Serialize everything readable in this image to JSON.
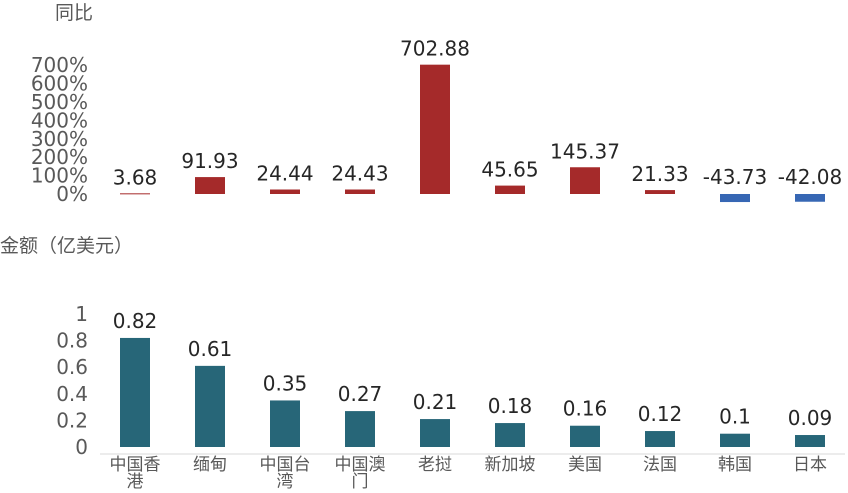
{
  "chart_data": [
    {
      "type": "bar",
      "ylabel": "同比",
      "categories": [
        "中国香港",
        "缅甸",
        "中国台湾",
        "中国澳门",
        "老挝",
        "新加坡",
        "美国",
        "法国",
        "韩国",
        "日本"
      ],
      "values": [
        3.68,
        91.93,
        24.44,
        24.43,
        702.88,
        45.65,
        145.37,
        21.33,
        -43.73,
        -42.08
      ],
      "yticks": [
        "0%",
        "100%",
        "200%",
        "300%",
        "400%",
        "500%",
        "600%",
        "700%"
      ],
      "ylim": [
        -50,
        730
      ],
      "colors": {
        "positive": "#A52A2A",
        "negative": "#3767B4"
      }
    },
    {
      "type": "bar",
      "ylabel": "金额（亿美元）",
      "categories": [
        "中国香港",
        "缅甸",
        "中国台湾",
        "中国澳门",
        "老挝",
        "新加坡",
        "美国",
        "法国",
        "韩国",
        "日本"
      ],
      "category_lines": [
        [
          "中国香",
          "港"
        ],
        [
          "缅甸"
        ],
        [
          "中国台",
          "湾"
        ],
        [
          "中国澳",
          "门"
        ],
        [
          "老挝"
        ],
        [
          "新加坡"
        ],
        [
          "美国"
        ],
        [
          "法国"
        ],
        [
          "韩国"
        ],
        [
          "日本"
        ]
      ],
      "values": [
        0.82,
        0.61,
        0.35,
        0.27,
        0.21,
        0.18,
        0.16,
        0.12,
        0.1,
        0.09
      ],
      "yticks": [
        "0",
        "0.2",
        "0.4",
        "0.6",
        "0.8",
        "1"
      ],
      "ylim": [
        0,
        1
      ],
      "colors": {
        "bar": "#276678"
      }
    }
  ]
}
